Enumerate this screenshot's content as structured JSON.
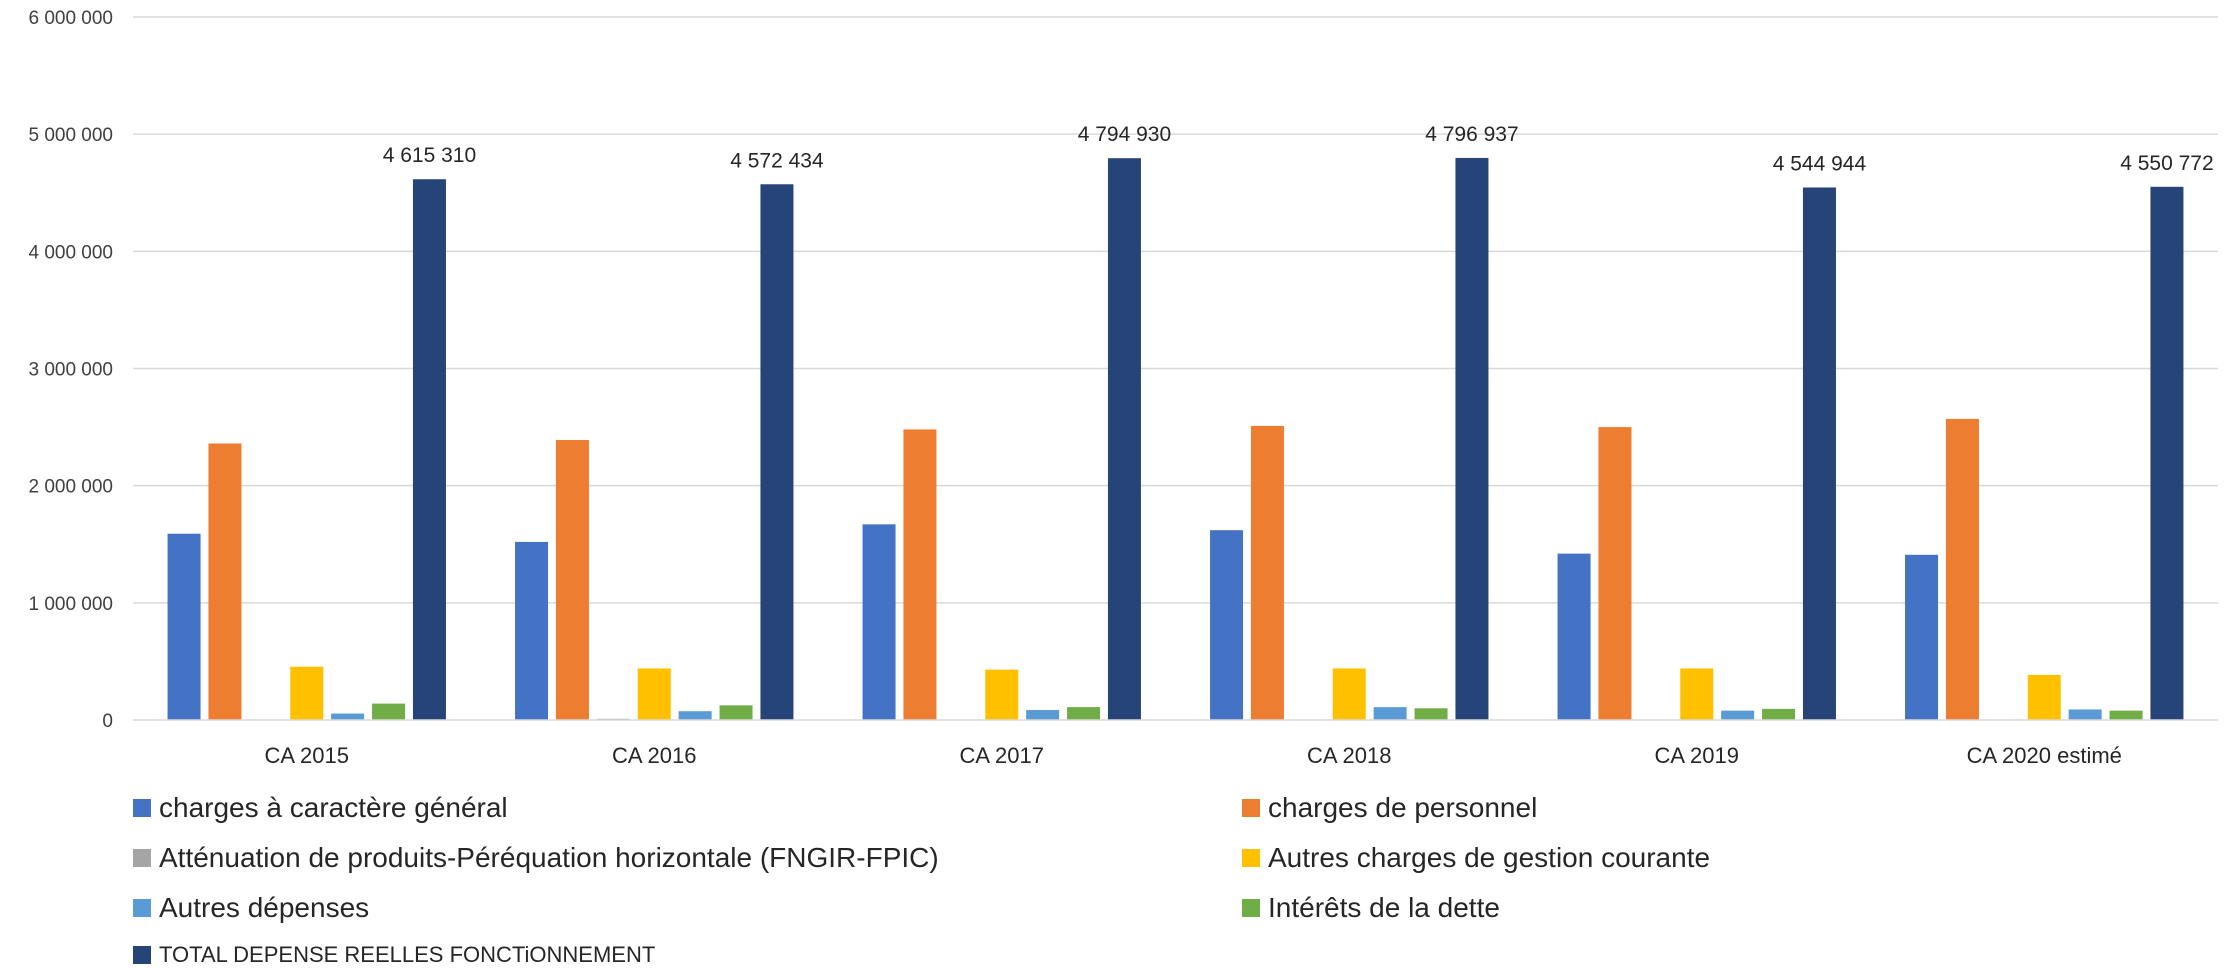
{
  "chart_data": {
    "type": "bar",
    "categories": [
      "CA 2015",
      "CA 2016",
      "CA 2017",
      "CA 2018",
      "CA 2019",
      "CA 2020 estimé"
    ],
    "series": [
      {
        "name": "charges à caractère général",
        "color": "#4472C4",
        "values": [
          1590000,
          1520000,
          1670000,
          1620000,
          1420000,
          1410000
        ]
      },
      {
        "name": "charges de personnel",
        "color": "#ED7D31",
        "values": [
          2360000,
          2390000,
          2480000,
          2510000,
          2500000,
          2570000
        ]
      },
      {
        "name": "Atténuation de produits-Péréquation horizontale (FNGIR-FPIC)",
        "color": "#A5A5A5",
        "values": [
          5000,
          10000,
          0,
          0,
          0,
          0
        ]
      },
      {
        "name": "Autres charges de gestion courante",
        "color": "#FFC000",
        "values": [
          455000,
          440000,
          430000,
          440000,
          440000,
          385000
        ]
      },
      {
        "name": "Autres dépenses",
        "color": "#5B9BD5",
        "values": [
          55000,
          75000,
          85000,
          110000,
          80000,
          90000
        ]
      },
      {
        "name": "Intérêts de la dette",
        "color": "#70AD47",
        "values": [
          140000,
          125000,
          110000,
          100000,
          95000,
          80000
        ]
      },
      {
        "name": "TOTAL DEPENSE REELLES FONCTiONNEMENT",
        "color": "#264478",
        "values": [
          4615310,
          4572434,
          4794930,
          4796937,
          4544944,
          4550772
        ],
        "data_labels": [
          "4 615 310",
          "4 572 434",
          "4 794 930",
          "4 796 937",
          "4 544 944",
          "4 550 772"
        ]
      }
    ],
    "ylim": [
      0,
      6000000
    ],
    "yticks": [
      0,
      1000000,
      2000000,
      3000000,
      4000000,
      5000000,
      6000000
    ],
    "ytick_labels": [
      "0",
      "1 000 000",
      "2 000 000",
      "3 000 000",
      "4 000 000",
      "5 000 000",
      "6 000 000"
    ],
    "grid": true,
    "legend_position": "bottom",
    "title": "",
    "xlabel": "",
    "ylabel": ""
  }
}
